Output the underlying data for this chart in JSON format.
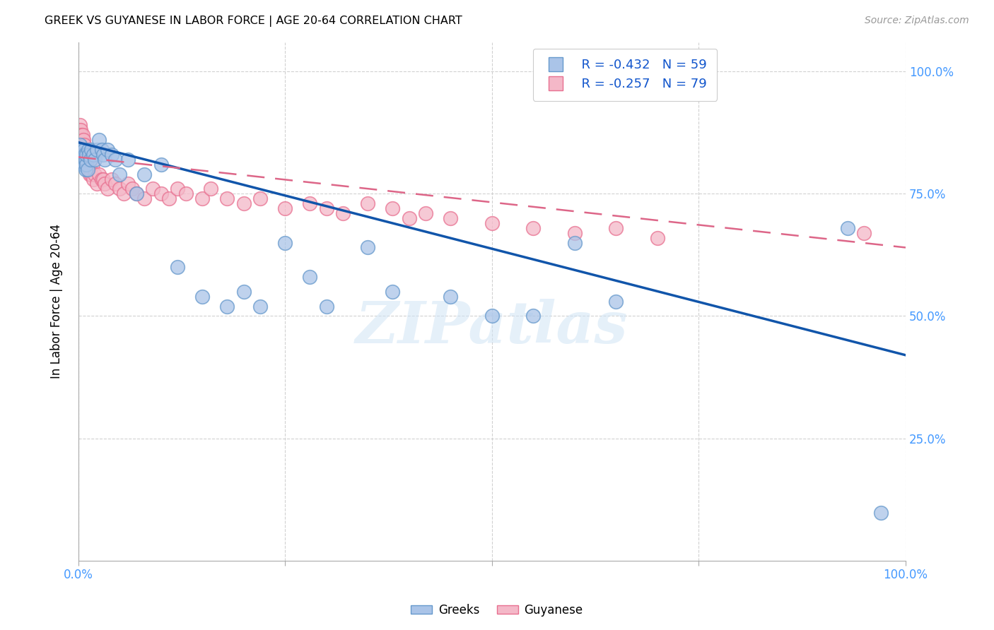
{
  "title": "GREEK VS GUYANESE IN LABOR FORCE | AGE 20-64 CORRELATION CHART",
  "source": "Source: ZipAtlas.com",
  "ylabel": "In Labor Force | Age 20-64",
  "xlim": [
    0.0,
    1.0
  ],
  "ylim": [
    0.0,
    1.06
  ],
  "ytick_labels": [
    "25.0%",
    "50.0%",
    "75.0%",
    "100.0%"
  ],
  "ytick_vals": [
    0.25,
    0.5,
    0.75,
    1.0
  ],
  "watermark": "ZIPatlas",
  "legend_blue_r": "R = -0.432",
  "legend_blue_n": "N = 59",
  "legend_pink_r": "R = -0.257",
  "legend_pink_n": "N = 79",
  "legend_blue_label": "Greeks",
  "legend_pink_label": "Guyanese",
  "blue_scatter_color": "#aac4e8",
  "pink_scatter_color": "#f4b8c8",
  "blue_edge_color": "#6699cc",
  "pink_edge_color": "#e87090",
  "blue_line_color": "#1155aa",
  "pink_line_color": "#dd6688",
  "axis_tick_color": "#4499ff",
  "background_color": "#ffffff",
  "greek_x": [
    0.001,
    0.002,
    0.002,
    0.003,
    0.003,
    0.003,
    0.004,
    0.004,
    0.004,
    0.005,
    0.005,
    0.005,
    0.006,
    0.006,
    0.007,
    0.007,
    0.008,
    0.008,
    0.009,
    0.009,
    0.01,
    0.01,
    0.011,
    0.012,
    0.013,
    0.015,
    0.016,
    0.018,
    0.02,
    0.022,
    0.025,
    0.028,
    0.03,
    0.032,
    0.035,
    0.04,
    0.045,
    0.05,
    0.06,
    0.07,
    0.08,
    0.1,
    0.12,
    0.15,
    0.18,
    0.2,
    0.22,
    0.25,
    0.28,
    0.3,
    0.35,
    0.38,
    0.45,
    0.5,
    0.55,
    0.6,
    0.65,
    0.93,
    0.97
  ],
  "greek_y": [
    0.84,
    0.85,
    0.83,
    0.82,
    0.84,
    0.83,
    0.82,
    0.84,
    0.83,
    0.82,
    0.83,
    0.81,
    0.82,
    0.83,
    0.81,
    0.84,
    0.82,
    0.83,
    0.8,
    0.82,
    0.81,
    0.83,
    0.8,
    0.84,
    0.83,
    0.82,
    0.84,
    0.83,
    0.82,
    0.84,
    0.86,
    0.84,
    0.83,
    0.82,
    0.84,
    0.83,
    0.82,
    0.79,
    0.82,
    0.75,
    0.79,
    0.81,
    0.6,
    0.54,
    0.52,
    0.55,
    0.52,
    0.65,
    0.58,
    0.52,
    0.64,
    0.55,
    0.54,
    0.5,
    0.5,
    0.65,
    0.53,
    0.68,
    0.097
  ],
  "guyanese_x": [
    0.001,
    0.001,
    0.002,
    0.002,
    0.002,
    0.003,
    0.003,
    0.003,
    0.003,
    0.004,
    0.004,
    0.004,
    0.005,
    0.005,
    0.005,
    0.006,
    0.006,
    0.006,
    0.007,
    0.007,
    0.007,
    0.008,
    0.008,
    0.008,
    0.009,
    0.009,
    0.009,
    0.01,
    0.01,
    0.011,
    0.011,
    0.012,
    0.013,
    0.014,
    0.015,
    0.015,
    0.016,
    0.017,
    0.018,
    0.02,
    0.022,
    0.025,
    0.028,
    0.03,
    0.032,
    0.035,
    0.04,
    0.045,
    0.05,
    0.055,
    0.06,
    0.065,
    0.07,
    0.08,
    0.09,
    0.1,
    0.11,
    0.12,
    0.13,
    0.15,
    0.16,
    0.18,
    0.2,
    0.22,
    0.25,
    0.28,
    0.3,
    0.32,
    0.35,
    0.38,
    0.4,
    0.42,
    0.45,
    0.5,
    0.55,
    0.6,
    0.65,
    0.7,
    0.95
  ],
  "guyanese_y": [
    0.87,
    0.88,
    0.87,
    0.89,
    0.86,
    0.87,
    0.85,
    0.86,
    0.88,
    0.85,
    0.87,
    0.84,
    0.86,
    0.84,
    0.87,
    0.83,
    0.85,
    0.86,
    0.84,
    0.83,
    0.85,
    0.84,
    0.83,
    0.82,
    0.83,
    0.82,
    0.84,
    0.82,
    0.83,
    0.81,
    0.83,
    0.8,
    0.81,
    0.79,
    0.8,
    0.82,
    0.79,
    0.81,
    0.78,
    0.79,
    0.77,
    0.79,
    0.78,
    0.78,
    0.77,
    0.76,
    0.78,
    0.77,
    0.76,
    0.75,
    0.77,
    0.76,
    0.75,
    0.74,
    0.76,
    0.75,
    0.74,
    0.76,
    0.75,
    0.74,
    0.76,
    0.74,
    0.73,
    0.74,
    0.72,
    0.73,
    0.72,
    0.71,
    0.73,
    0.72,
    0.7,
    0.71,
    0.7,
    0.69,
    0.68,
    0.67,
    0.68,
    0.66,
    0.67
  ],
  "blue_trendline_x0": 0.0,
  "blue_trendline_y0": 0.855,
  "blue_trendline_x1": 1.0,
  "blue_trendline_y1": 0.42,
  "pink_trendline_x0": 0.0,
  "pink_trendline_y0": 0.825,
  "pink_trendline_x1": 1.0,
  "pink_trendline_y1": 0.64
}
